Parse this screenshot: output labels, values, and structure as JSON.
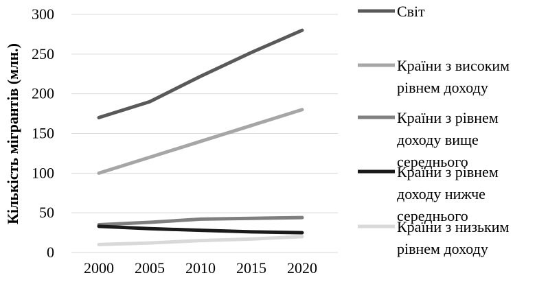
{
  "chart_data": {
    "type": "line",
    "title": "",
    "xlabel": "",
    "ylabel": "Кількість мігрантів (млн.)",
    "categories": [
      "2000",
      "2005",
      "2010",
      "2015",
      "2020"
    ],
    "ylim": [
      0,
      300
    ],
    "yticks": [
      0,
      50,
      100,
      150,
      200,
      250,
      300
    ],
    "grid": true,
    "legend_position": "right",
    "series": [
      {
        "name": "Світ",
        "legend_lines": [
          "Світ"
        ],
        "color": "#595959",
        "values": [
          170,
          190,
          222,
          252,
          280
        ]
      },
      {
        "name": "Країни з високим рівнем доходу",
        "legend_lines": [
          "Країни з високим",
          "рівнем доходу"
        ],
        "color": "#a6a6a6",
        "values": [
          100,
          120,
          140,
          160,
          180
        ]
      },
      {
        "name": "Країни з рівнем доходу вище середнього",
        "legend_lines": [
          "Країни з рівнем",
          "доходу вище",
          "середнього"
        ],
        "color": "#7f7f7f",
        "values": [
          35,
          38,
          42,
          43,
          44
        ]
      },
      {
        "name": "Країни з рівнем доходу нижче середнього",
        "legend_lines": [
          "Країни з рівнем",
          "доходу нижче",
          "середнього"
        ],
        "color": "#1a1a1a",
        "values": [
          33,
          30,
          28,
          26,
          25
        ]
      },
      {
        "name": "Країни з низьким рівнем доходу",
        "legend_lines": [
          "Країни з низьким",
          "рівнем доходу"
        ],
        "color": "#d9d9d9",
        "values": [
          10,
          12,
          15,
          17,
          20
        ]
      }
    ]
  }
}
